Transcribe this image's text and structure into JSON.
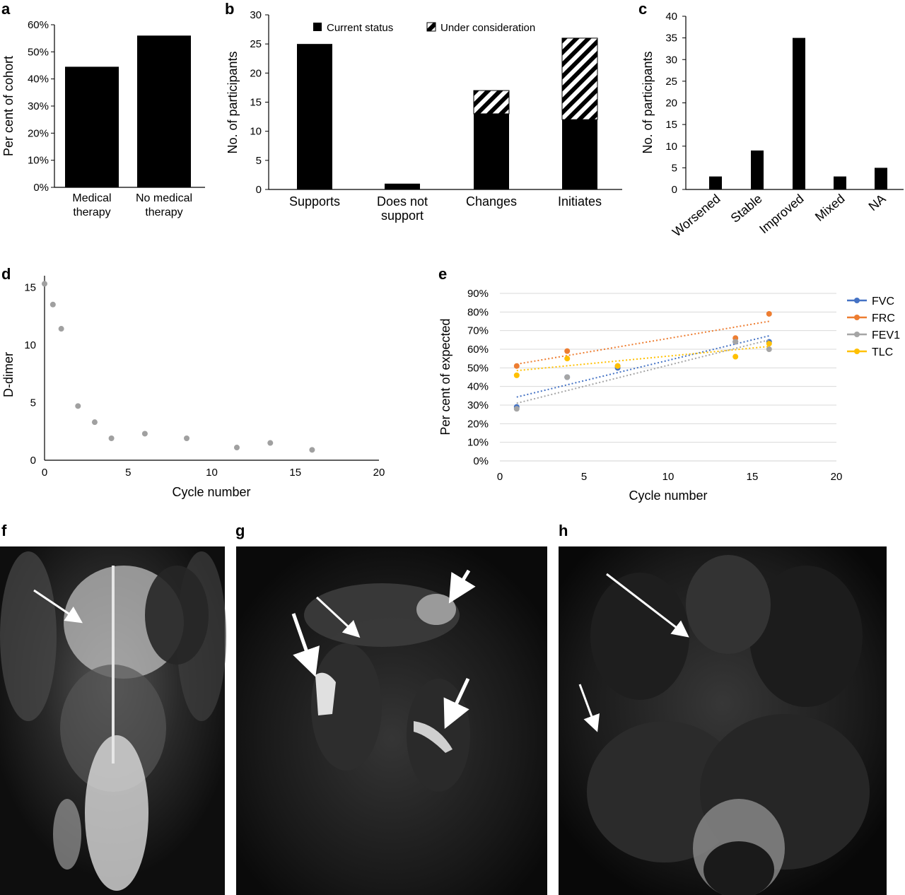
{
  "panels": {
    "a": "a",
    "b": "b",
    "c": "c",
    "d": "d",
    "e": "e",
    "f": "f",
    "g": "g",
    "h": "h"
  },
  "colors": {
    "bar": "#000000",
    "scatter_d": "#a0a0a0",
    "FVC": "#4472c4",
    "FRC": "#ed7d31",
    "FEV1": "#a5a5a5",
    "TLC": "#ffc000",
    "grid": "#d9d9d9"
  },
  "chart_data": [
    {
      "id": "a",
      "type": "bar",
      "categories": [
        [
          "Medical",
          "therapy"
        ],
        [
          "No medical",
          "therapy"
        ]
      ],
      "values": [
        44.5,
        56
      ],
      "ylabel": "Per cent of cohort",
      "ylim": [
        0,
        60
      ],
      "yticks": [
        "0%",
        "10%",
        "20%",
        "30%",
        "40%",
        "50%",
        "60%"
      ]
    },
    {
      "id": "b",
      "type": "bar",
      "stacked": true,
      "categories": [
        [
          "Supports"
        ],
        [
          "Does not",
          "support"
        ],
        [
          "Changes"
        ],
        [
          "Initiates"
        ]
      ],
      "series": [
        {
          "name": "Current status",
          "values": [
            25,
            1,
            13,
            12
          ]
        },
        {
          "name": "Under consideration",
          "values": [
            0,
            0,
            4,
            14
          ]
        }
      ],
      "ylabel": "No. of participants",
      "ylim": [
        0,
        30
      ],
      "yticks": [
        "0",
        "5",
        "10",
        "15",
        "20",
        "25",
        "30"
      ]
    },
    {
      "id": "c",
      "type": "bar",
      "categories": [
        "Worsened",
        "Stable",
        "Improved",
        "Mixed",
        "NA"
      ],
      "values": [
        3,
        9,
        35,
        3,
        5
      ],
      "ylabel": "No. of participants",
      "ylim": [
        0,
        40
      ],
      "yticks": [
        "0",
        "5",
        "10",
        "15",
        "20",
        "25",
        "30",
        "35",
        "40"
      ]
    },
    {
      "id": "d",
      "type": "scatter",
      "points": [
        [
          0,
          15.3
        ],
        [
          0.5,
          13.5
        ],
        [
          1,
          11.4
        ],
        [
          2,
          4.7
        ],
        [
          3,
          3.3
        ],
        [
          4,
          1.9
        ],
        [
          6,
          2.3
        ],
        [
          8.5,
          1.9
        ],
        [
          11.5,
          1.1
        ],
        [
          13.5,
          1.5
        ],
        [
          16,
          0.9
        ]
      ],
      "xlabel": "Cycle number",
      "ylabel": "D-dimer",
      "xlim": [
        0,
        20
      ],
      "ylim": [
        0,
        16
      ],
      "xticks": [
        "0",
        "5",
        "10",
        "15",
        "20"
      ],
      "yticks": [
        "0",
        "5",
        "10",
        "15"
      ]
    },
    {
      "id": "e",
      "type": "scatter",
      "x": [
        1,
        4,
        7,
        14,
        16
      ],
      "series": [
        {
          "name": "FVC",
          "values": [
            29,
            45,
            50,
            64,
            64
          ],
          "trend": [
            34.3,
            67.2
          ]
        },
        {
          "name": "FRC",
          "values": [
            51,
            59,
            51,
            66,
            79
          ],
          "trend": [
            52,
            75
          ]
        },
        {
          "name": "FEV1",
          "values": [
            28,
            45,
            51,
            64,
            60
          ],
          "trend": [
            31,
            65
          ]
        },
        {
          "name": "TLC",
          "values": [
            46,
            55,
            51,
            56,
            63
          ],
          "trend": [
            48.5,
            61.5
          ]
        }
      ],
      "xlabel": "Cycle number",
      "ylabel": "Per cent of expected",
      "xlim": [
        0,
        20
      ],
      "ylim": [
        0,
        90
      ],
      "xticks": [
        "0",
        "5",
        "10",
        "15",
        "20"
      ],
      "yticks": [
        "0%",
        "10%",
        "20%",
        "30%",
        "40%",
        "50%",
        "60%",
        "70%",
        "80%",
        "90%"
      ],
      "legend_position": "right"
    }
  ]
}
